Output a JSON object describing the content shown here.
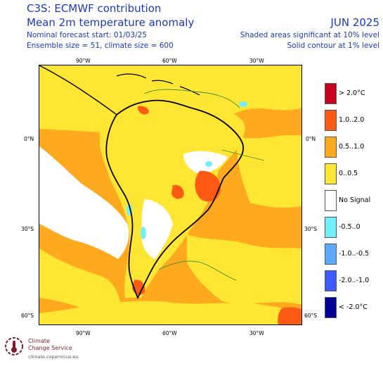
{
  "header": {
    "title": "C3S: ECMWF contribution",
    "subtitle": "Mean 2m temperature anomaly",
    "forecast_start": "Nominal forecast start: 01/03/25",
    "ensemble": "Ensemble size = 51, climate size = 600",
    "month": "JUN 2025",
    "note_shading": "Shaded areas significant at 10% level",
    "note_contour": "Solid contour at 1% level"
  },
  "axes": {
    "lon_top": [
      "90°W",
      "60°W",
      "30°W"
    ],
    "lon_bottom": [
      "90°W",
      "60°W",
      "30°W"
    ],
    "lat_left": [
      "0°N",
      "30°S",
      "60°S"
    ],
    "lat_right": [
      "0°N",
      "30°S",
      "60°S"
    ]
  },
  "legend": [
    {
      "label": "> 2.0°C",
      "color": "#c8001e"
    },
    {
      "label": "1.0..2.0",
      "color": "#ff5a14"
    },
    {
      "label": "0.5..1.0",
      "color": "#ffaa1e"
    },
    {
      "label": "0..0.5",
      "color": "#ffe632"
    },
    {
      "label": "No Signal",
      "color": "#ffffff"
    },
    {
      "label": "-0.5..0",
      "color": "#73f0ff"
    },
    {
      "label": "-1.0..-0.5",
      "color": "#5aaaff"
    },
    {
      "label": "-2.0..-1.0",
      "color": "#3c5aff"
    },
    {
      "label": "< -2.0°C",
      "color": "#000096"
    }
  ],
  "logo": {
    "line1": "Climate",
    "line2": "Change Service",
    "url": "climate.copernicus.eu"
  }
}
